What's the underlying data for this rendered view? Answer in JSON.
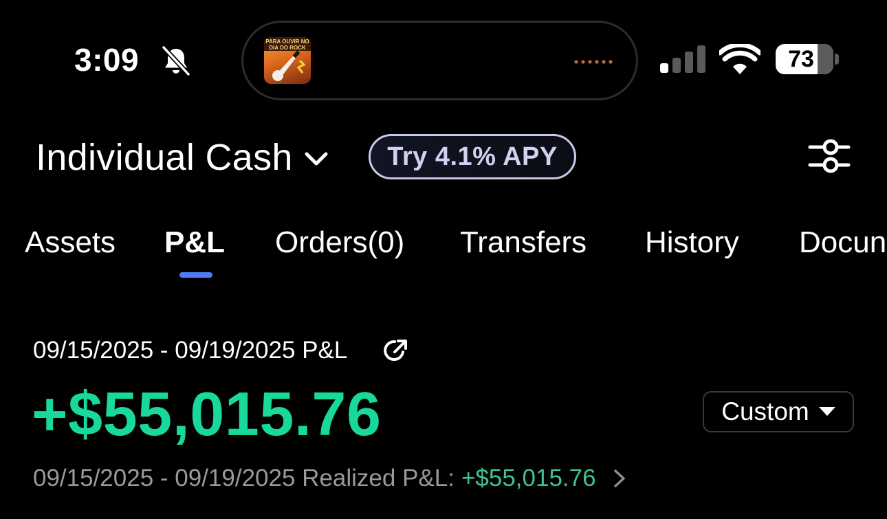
{
  "status_bar": {
    "time": "3:09",
    "battery_level": "73",
    "battery_fraction": 0.73,
    "signal_bars_active": 1,
    "now_playing_art_text": "PARA OUVIR NO DIA DO ROCK"
  },
  "header": {
    "account_name": "Individual Cash",
    "promo_label": "Try 4.1% APY"
  },
  "tabs": [
    {
      "label": "Assets",
      "active": false
    },
    {
      "label": "P&L",
      "active": true
    },
    {
      "label": "Orders(0)",
      "active": false
    },
    {
      "label": "Transfers",
      "active": false
    },
    {
      "label": "History",
      "active": false
    },
    {
      "label": "Docun",
      "active": false
    }
  ],
  "pl": {
    "period_label": "09/15/2025 - 09/19/2025 P&L",
    "total_value": "+$55,015.76",
    "range_selector": "Custom",
    "realized_label": "09/15/2025 - 09/19/2025 Realized P&L:",
    "realized_value": "+$55,015.76"
  },
  "colors": {
    "background": "#000000",
    "positive": "#19d89b",
    "positive_muted": "#41c28e",
    "tab_indicator": "#4f7cf4",
    "muted_text": "#9a9a9e"
  },
  "icons": {
    "notifications": "bell-slash-icon",
    "account_dropdown": "chevron-down-icon",
    "settings": "sliders-icon",
    "share": "share-icon",
    "range_dropdown": "caret-down-icon",
    "realized_link": "chevron-right-icon",
    "signal": "cellular-signal-icon",
    "wifi": "wifi-icon",
    "battery": "battery-icon"
  }
}
